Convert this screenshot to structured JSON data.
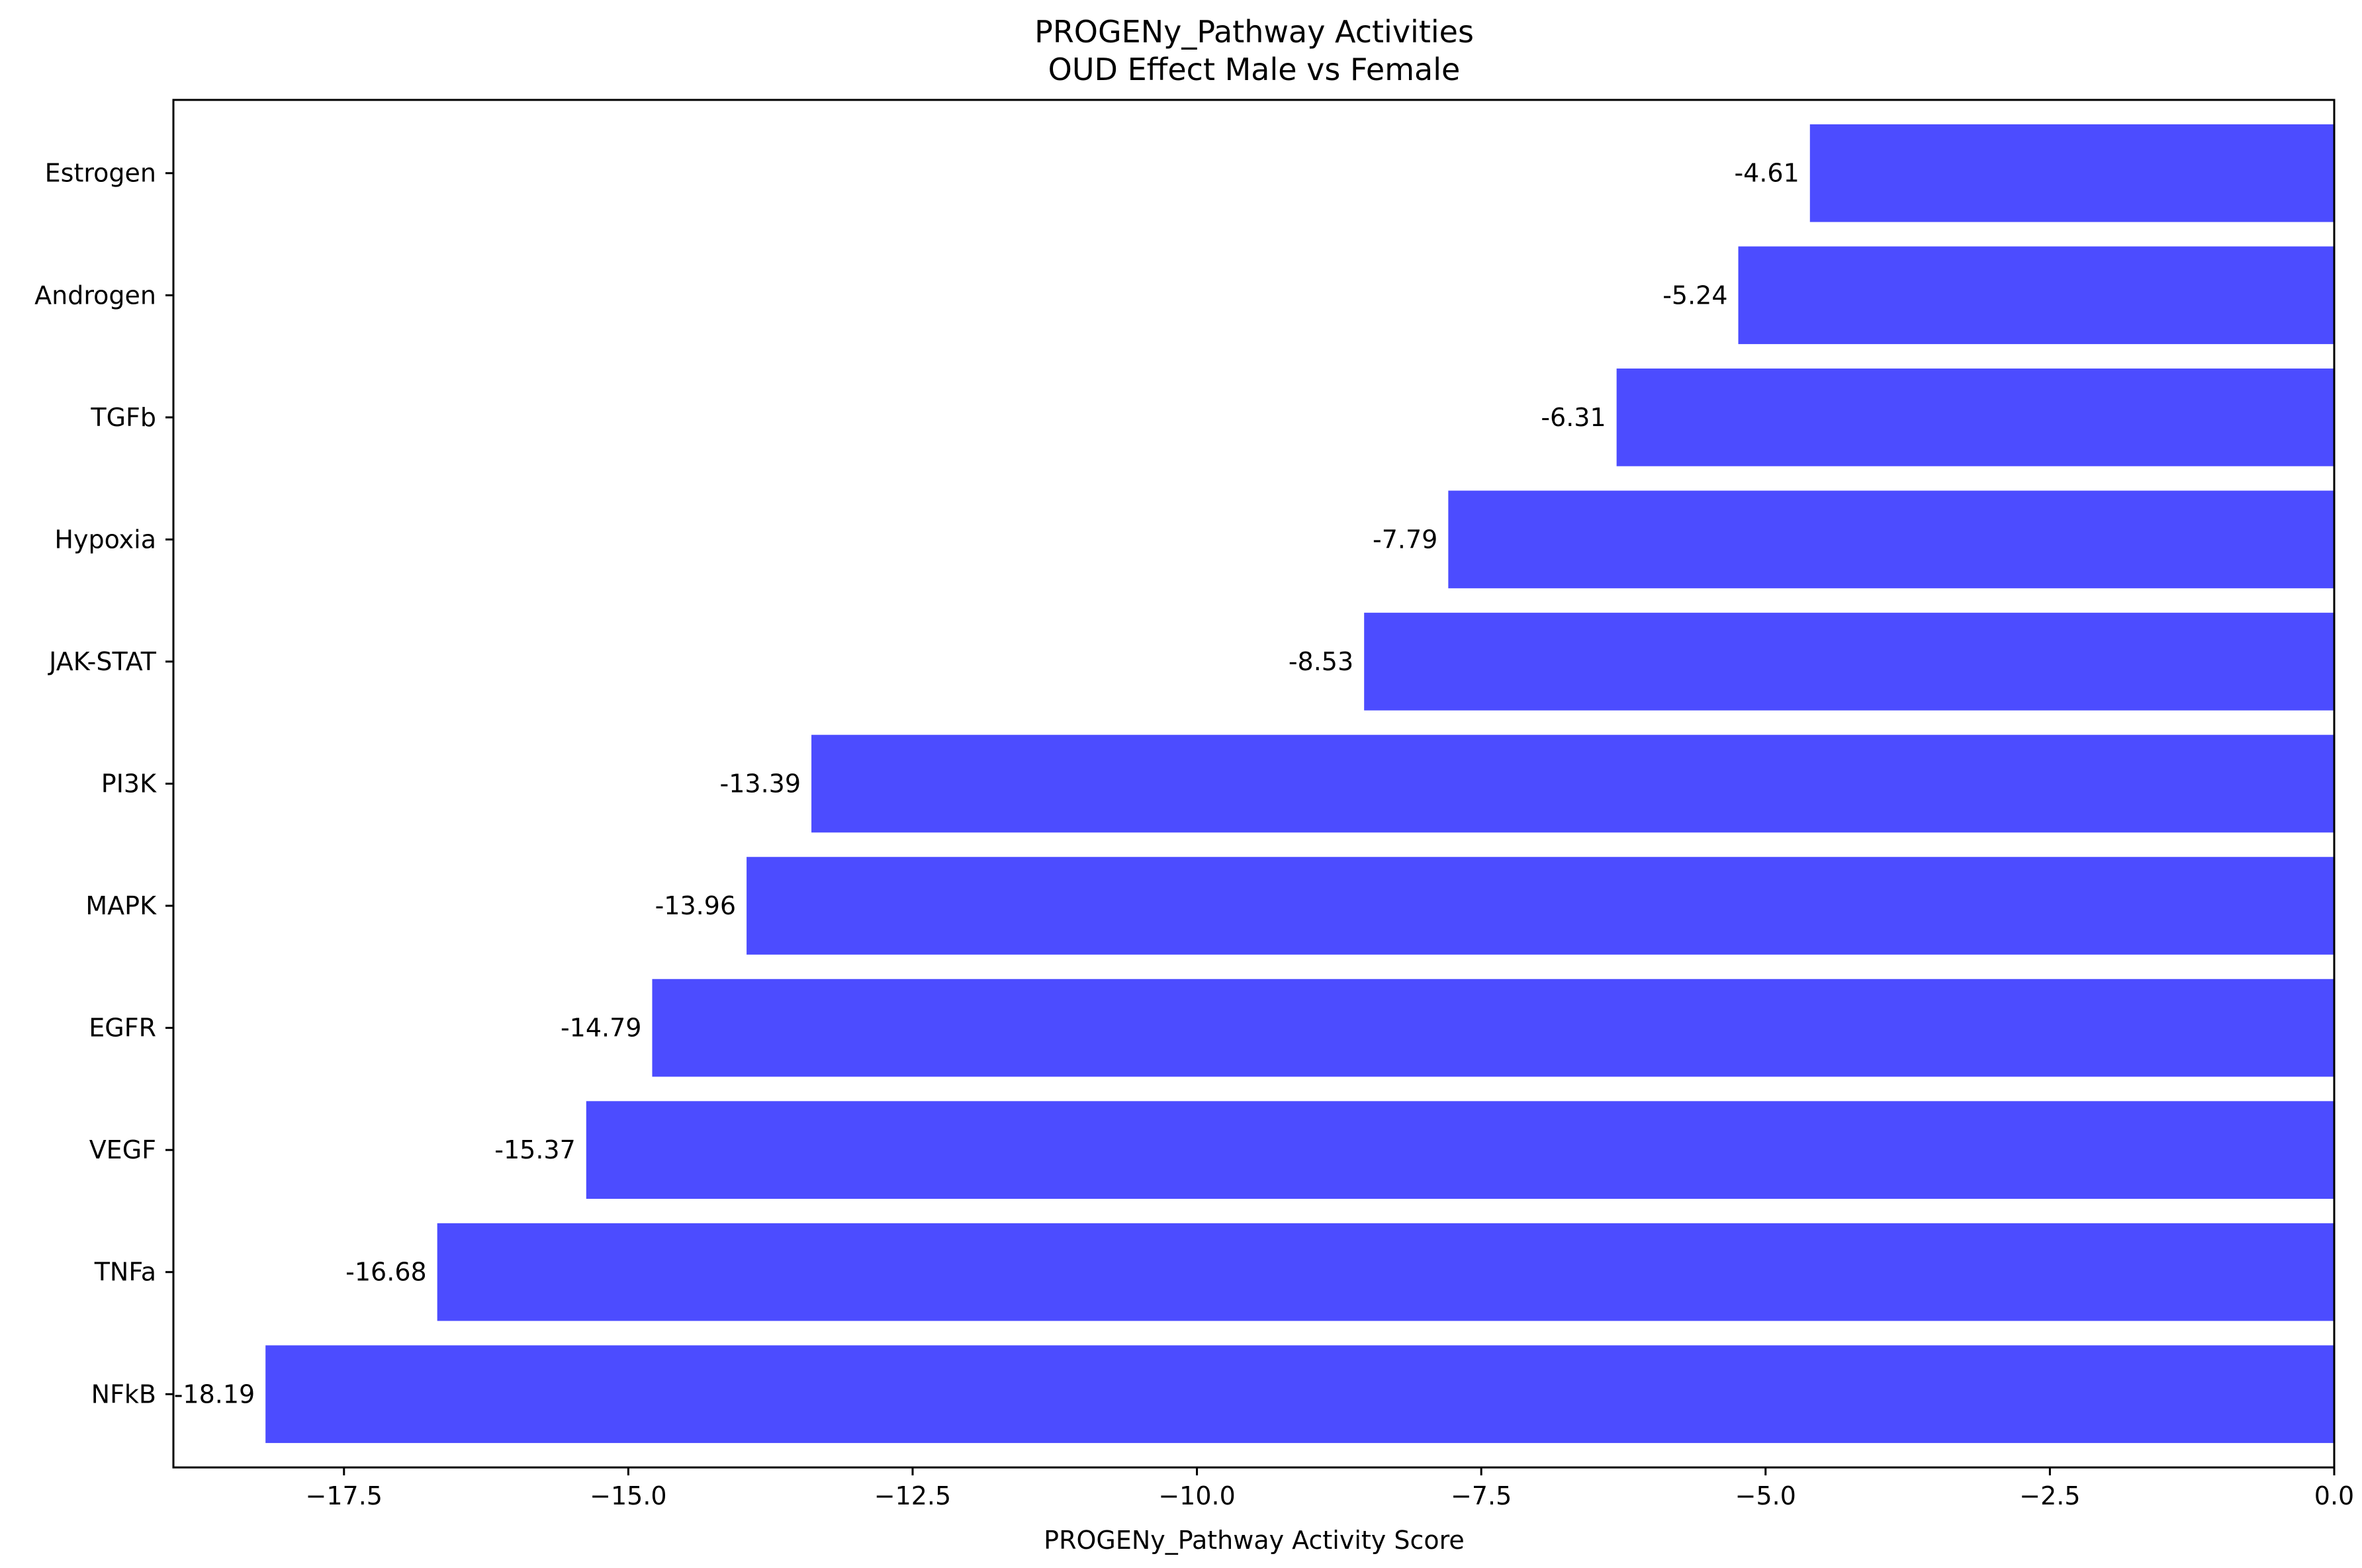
{
  "chart_data": {
    "type": "bar",
    "orientation": "horizontal",
    "title": "PROGENy_Pathway Activities",
    "subtitle": "OUD Effect Male vs Female",
    "xlabel": "PROGENy_Pathway Activity Score",
    "ylabel": "",
    "xlim": [
      -19.0,
      0.0
    ],
    "xticks": [
      -17.5,
      -15.0,
      -12.5,
      -10.0,
      -7.5,
      -5.0,
      -2.5,
      0.0
    ],
    "xtick_labels": [
      "−17.5",
      "−15.0",
      "−12.5",
      "−10.0",
      "−7.5",
      "−5.0",
      "−2.5",
      "0.0"
    ],
    "grid": false,
    "legend": "none",
    "bar_color": "#4c4cff",
    "categories": [
      "Estrogen",
      "Androgen",
      "TGFb",
      "Hypoxia",
      "JAK-STAT",
      "PI3K",
      "MAPK",
      "EGFR",
      "VEGF",
      "TNFa",
      "NFkB"
    ],
    "values": [
      -4.61,
      -5.24,
      -6.31,
      -7.79,
      -8.53,
      -13.39,
      -13.96,
      -14.79,
      -15.37,
      -16.68,
      -18.19
    ],
    "value_labels": [
      "-4.61",
      "-5.24",
      "-6.31",
      "-7.79",
      "-8.53",
      "-13.39",
      "-13.96",
      "-14.79",
      "-15.37",
      "-16.68",
      "-18.19"
    ]
  }
}
